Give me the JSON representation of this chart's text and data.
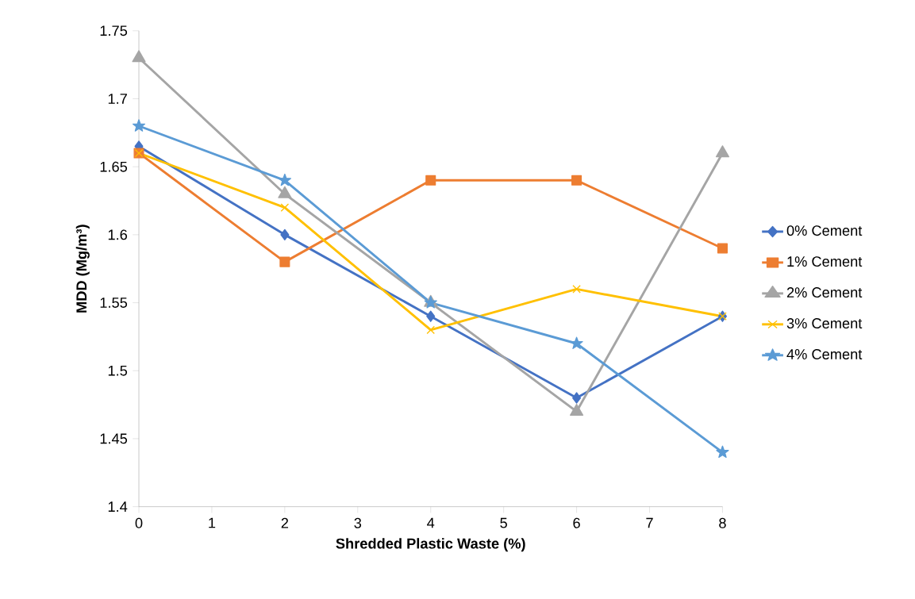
{
  "chart_data": {
    "type": "line",
    "xlabel": "Shredded Plastic Waste  (%)",
    "ylabel": "MDD (Mg/m³)",
    "x": [
      0,
      2,
      4,
      6,
      8
    ],
    "xlim": [
      0,
      8
    ],
    "xticks": [
      0,
      1,
      2,
      3,
      4,
      5,
      6,
      7,
      8
    ],
    "ylim": [
      1.4,
      1.75
    ],
    "yticks": [
      1.4,
      1.45,
      1.5,
      1.55,
      1.6,
      1.65,
      1.7,
      1.75
    ],
    "legend": "right",
    "line_style": "solid",
    "series": [
      {
        "name": "0% Cement",
        "color": "#4472c4",
        "marker": "diamond",
        "values": [
          1.665,
          1.6,
          1.54,
          1.48,
          1.54
        ]
      },
      {
        "name": "1% Cement",
        "color": "#ed7d31",
        "marker": "square",
        "values": [
          1.66,
          1.58,
          1.64,
          1.64,
          1.59
        ]
      },
      {
        "name": "2% Cement",
        "color": "#a5a5a5",
        "marker": "triangle",
        "values": [
          1.73,
          1.63,
          1.55,
          1.47,
          1.66
        ]
      },
      {
        "name": "3% Cement",
        "color": "#ffc000",
        "marker": "cross",
        "values": [
          1.66,
          1.62,
          1.53,
          1.56,
          1.54
        ]
      },
      {
        "name": "4% Cement",
        "color": "#5b9bd5",
        "marker": "star",
        "values": [
          1.68,
          1.64,
          1.55,
          1.52,
          1.44
        ]
      }
    ]
  }
}
